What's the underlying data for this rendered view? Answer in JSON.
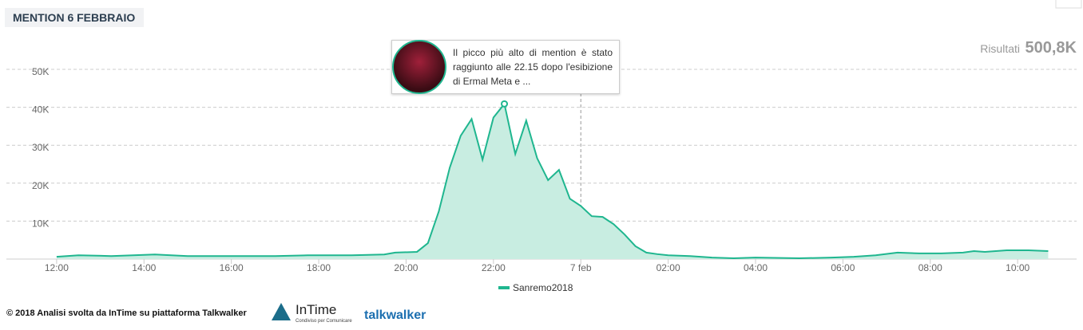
{
  "header": {
    "title": "MENTION 6 FEBBRAIO",
    "results_label": "Risultati",
    "results_value": "500,8K"
  },
  "chart_data": {
    "type": "area",
    "series": [
      {
        "name": "Sanremo2018",
        "color": "#1fb68f",
        "fill": "#c8ede1",
        "x": [
          12,
          12.5,
          13.25,
          14.25,
          15,
          16,
          17,
          17.75,
          18.75,
          19.5,
          19.75,
          20.25,
          20.5,
          20.75,
          21,
          21.25,
          21.5,
          21.75,
          22,
          22.25,
          22.5,
          22.75,
          23,
          23.25,
          23.5,
          23.75,
          24,
          24.25,
          24.5,
          24.75,
          25,
          25.25,
          25.5,
          25.75,
          26,
          26.5,
          27,
          27.5,
          28,
          29,
          29.75,
          30.25,
          30.75,
          31.25,
          31.75,
          32.25,
          32.75,
          33,
          33.25,
          33.75,
          34.25,
          34.7
        ],
        "values": [
          600,
          1000,
          800,
          1200,
          800,
          800,
          800,
          1000,
          1000,
          1200,
          1700,
          1900,
          4200,
          12600,
          24100,
          32500,
          36900,
          26200,
          37300,
          40900,
          27700,
          36500,
          26600,
          20800,
          23500,
          15900,
          14000,
          11300,
          11100,
          9200,
          6500,
          3400,
          1700,
          1300,
          1000,
          800,
          400,
          200,
          400,
          200,
          400,
          600,
          1000,
          1700,
          1500,
          1500,
          1700,
          2100,
          1900,
          2300,
          2300,
          2100
        ]
      }
    ],
    "xlim": [
      10.85,
      35.35
    ],
    "xticks": [
      {
        "value": 12,
        "label": "12:00"
      },
      {
        "value": 14,
        "label": "14:00"
      },
      {
        "value": 16,
        "label": "16:00"
      },
      {
        "value": 18,
        "label": "18:00"
      },
      {
        "value": 20,
        "label": "20:00"
      },
      {
        "value": 22,
        "label": "22:00"
      },
      {
        "value": 24,
        "label": "7 feb"
      },
      {
        "value": 26,
        "label": "02:00"
      },
      {
        "value": 28,
        "label": "04:00"
      },
      {
        "value": 30,
        "label": "06:00"
      },
      {
        "value": 32,
        "label": "08:00"
      },
      {
        "value": 34,
        "label": "10:00"
      }
    ],
    "ylim": [
      0,
      50000
    ],
    "yticks": [
      {
        "value": 10000,
        "label": "10K"
      },
      {
        "value": 20000,
        "label": "20K"
      },
      {
        "value": 30000,
        "label": "30K"
      },
      {
        "value": 40000,
        "label": "40K"
      },
      {
        "value": 50000,
        "label": "50K"
      }
    ],
    "grid": true,
    "annotation": {
      "point": 19,
      "text": "Il picco più alto di mention è stato raggiunto alle 22.15 dopo l'esibizione di Ermal Meta e ..."
    }
  },
  "footer": {
    "copyright": "© 2018  Analisi svolta da InTime su piattaforma Talkwalker",
    "logo1": "InTime",
    "logo1_sub": "Condiviso per Comunicare",
    "logo2": "talkwalker"
  }
}
